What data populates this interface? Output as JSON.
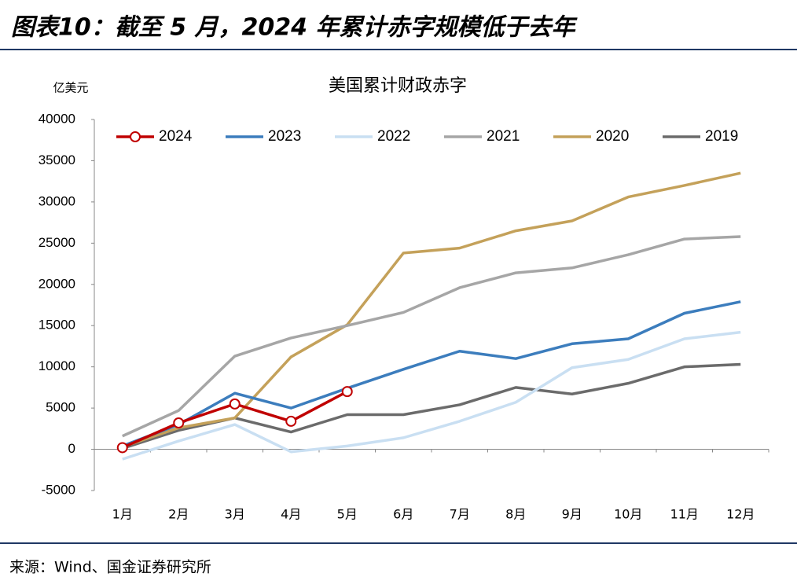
{
  "header": {
    "title": "图表10：截至 5 月，2024 年累计赤字规模低于去年"
  },
  "chart_data": {
    "type": "line",
    "title": "美国累计财政赤字",
    "y_unit": "亿美元",
    "categories": [
      "1月",
      "2月",
      "3月",
      "4月",
      "5月",
      "6月",
      "7月",
      "8月",
      "9月",
      "10月",
      "11月",
      "12月"
    ],
    "series": [
      {
        "name": "2024",
        "color": "#c00000",
        "marker": "circle",
        "values": [
          200,
          3200,
          5500,
          3400,
          7000,
          null,
          null,
          null,
          null,
          null,
          null,
          null
        ]
      },
      {
        "name": "2023",
        "color": "#3c7dbd",
        "values": [
          400,
          3000,
          6800,
          5000,
          7400,
          9700,
          11900,
          11000,
          12800,
          13400,
          16500,
          17900
        ]
      },
      {
        "name": "2022",
        "color": "#c9dff2",
        "values": [
          -1200,
          1000,
          3000,
          -300,
          400,
          1400,
          3400,
          5700,
          9900,
          10900,
          13400,
          14200
        ]
      },
      {
        "name": "2021",
        "color": "#a6a6a6",
        "values": [
          1600,
          4700,
          11300,
          13500,
          15000,
          16600,
          19600,
          21400,
          22000,
          23600,
          25500,
          25800
        ]
      },
      {
        "name": "2020",
        "color": "#c4a15a",
        "values": [
          300,
          2600,
          3800,
          11200,
          15100,
          23800,
          24400,
          26500,
          27700,
          30600,
          32000,
          33500
        ]
      },
      {
        "name": "2019",
        "color": "#6b6b6b",
        "values": [
          100,
          2300,
          3800,
          2100,
          4200,
          4200,
          5400,
          7500,
          6700,
          8000,
          10000,
          10300
        ]
      }
    ],
    "ylim": [
      -5000,
      40000
    ],
    "yticks": [
      -5000,
      0,
      5000,
      10000,
      15000,
      20000,
      25000,
      30000,
      35000,
      40000
    ],
    "grid": false,
    "legend": "top"
  },
  "footer": {
    "source": "来源：Wind、国金证券研究所"
  }
}
